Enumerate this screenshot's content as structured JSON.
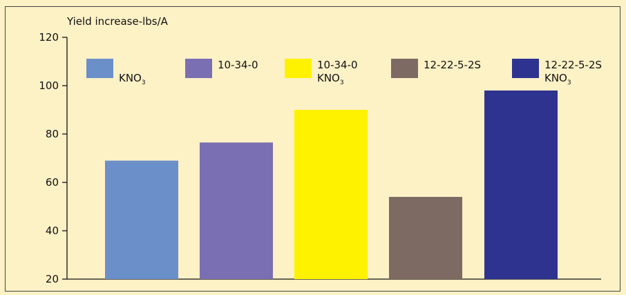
{
  "chart_data": {
    "type": "bar",
    "title": "",
    "xlabel": "",
    "ylabel": "Yield increase-lbs/A",
    "ylim": [
      20,
      120
    ],
    "yticks": [
      20,
      40,
      60,
      80,
      100,
      120
    ],
    "grid": false,
    "legend_placement": "top",
    "series": [
      {
        "legend_lines": [
          "",
          "KNO3"
        ],
        "color": "#6b8fc9",
        "value": 69
      },
      {
        "legend_lines": [
          "10-34-0"
        ],
        "color": "#7a6fb3",
        "value": 76.5
      },
      {
        "legend_lines": [
          "10-34-0",
          "KNO3"
        ],
        "color": "#fff200",
        "value": 90
      },
      {
        "legend_lines": [
          "12-22-5-2S"
        ],
        "color": "#7d6a62",
        "value": 54
      },
      {
        "legend_lines": [
          "12-22-5-2S",
          "KNO3"
        ],
        "color": "#2f3390",
        "value": 98
      }
    ]
  }
}
